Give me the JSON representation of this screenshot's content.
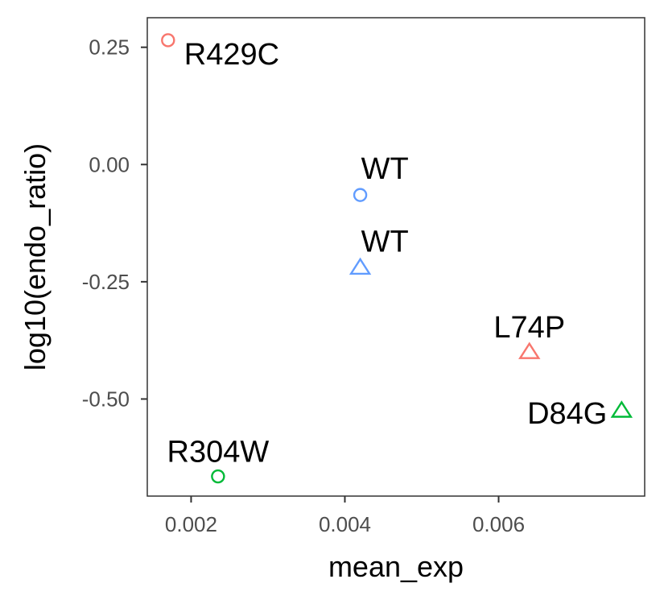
{
  "chart_data": {
    "type": "scatter",
    "xlabel": "mean_exp",
    "ylabel": "log10(endo_ratio)",
    "xlim": [
      0.00143,
      0.0079
    ],
    "ylim": [
      -0.707,
      0.313
    ],
    "x_ticks": [
      {
        "value": 0.002,
        "label": "0.002"
      },
      {
        "value": 0.004,
        "label": "0.004"
      },
      {
        "value": 0.006,
        "label": "0.006"
      }
    ],
    "y_ticks": [
      {
        "value": 0.25,
        "label": "0.25"
      },
      {
        "value": 0.0,
        "label": "0.00"
      },
      {
        "value": -0.25,
        "label": "-0.25"
      },
      {
        "value": -0.5,
        "label": "-0.50"
      }
    ],
    "grid": false,
    "legend": "none",
    "points": [
      {
        "label": "R429C",
        "x": 0.0017,
        "y": 0.265,
        "shape": "circle",
        "color": "#F8766D",
        "label_position": "below-right"
      },
      {
        "label": "WT",
        "x": 0.0042,
        "y": -0.065,
        "shape": "circle",
        "color": "#619CFF",
        "label_position": "above-right"
      },
      {
        "label": "WT",
        "x": 0.0042,
        "y": -0.22,
        "shape": "triangle",
        "color": "#619CFF",
        "label_position": "above-right"
      },
      {
        "label": "L74P",
        "x": 0.0064,
        "y": -0.4,
        "shape": "triangle",
        "color": "#F8766D",
        "label_position": "above"
      },
      {
        "label": "D84G",
        "x": 0.0076,
        "y": -0.525,
        "shape": "triangle",
        "color": "#00BA38",
        "label_position": "left"
      },
      {
        "label": "R304W",
        "x": 0.00235,
        "y": -0.665,
        "shape": "circle",
        "color": "#00BA38",
        "label_position": "above"
      }
    ]
  }
}
